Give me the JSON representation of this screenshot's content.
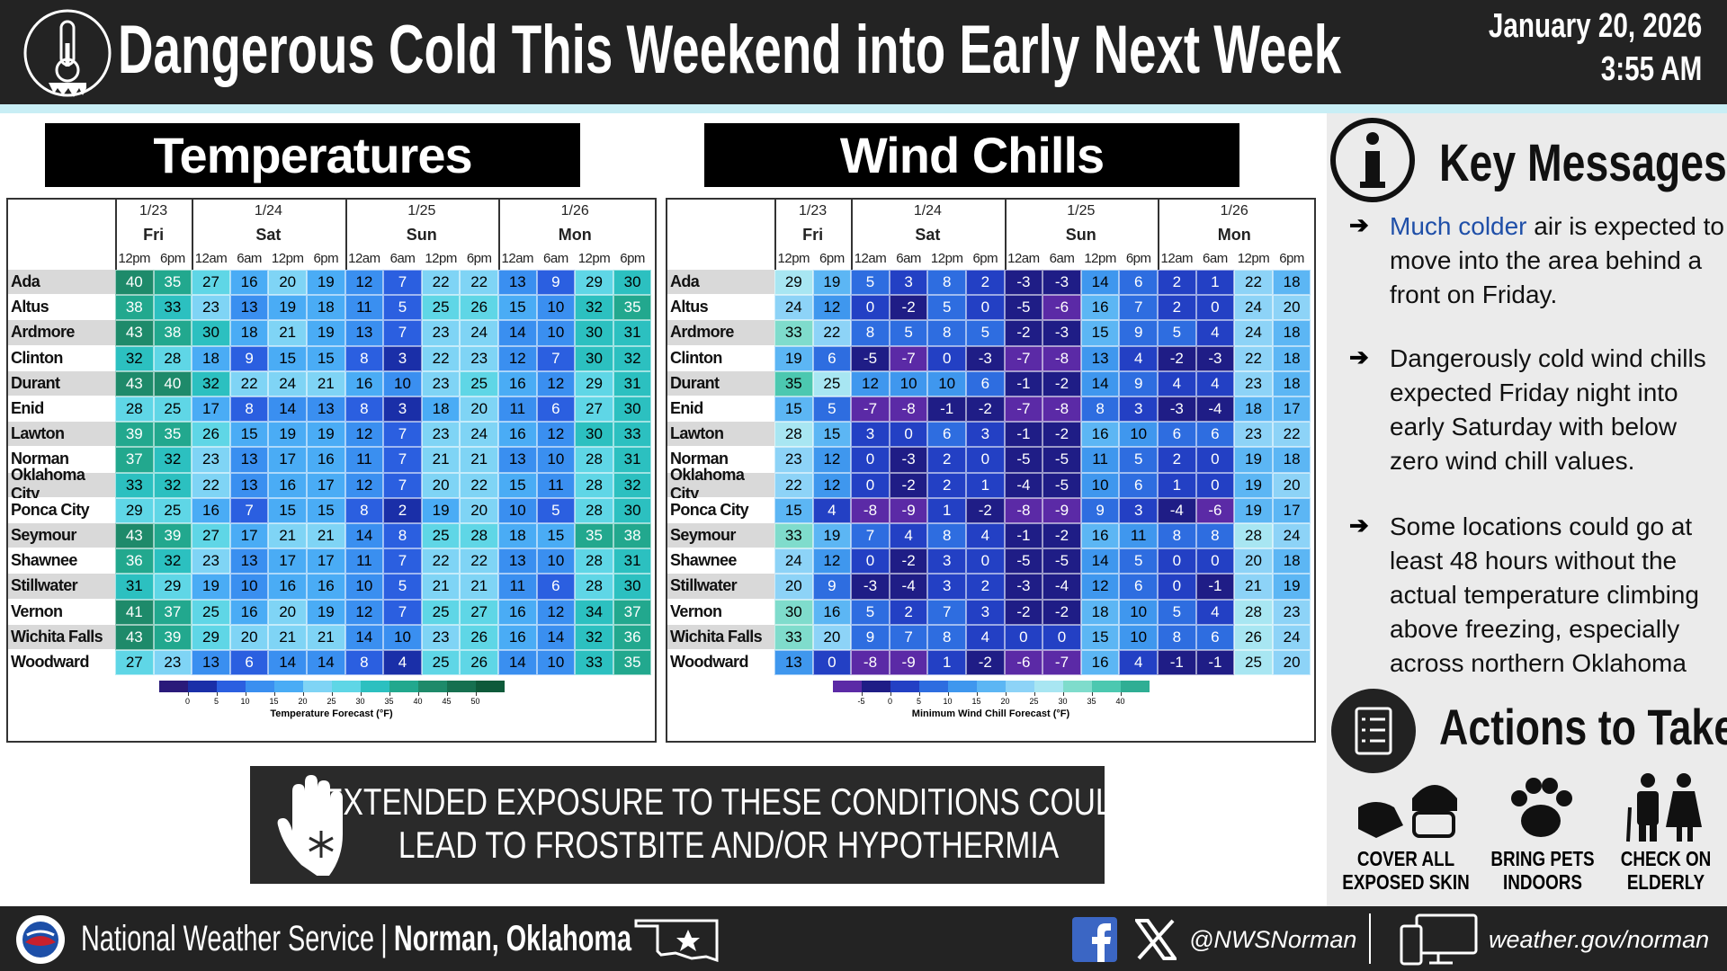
{
  "header": {
    "title": "Dangerous Cold This Weekend into Early Next Week",
    "date": "January 20, 2026",
    "time": "3:55 AM"
  },
  "temperatures": {
    "title": "Temperatures",
    "days": [
      {
        "date": "1/23",
        "day": "Fri",
        "times": [
          "12pm",
          "6pm"
        ]
      },
      {
        "date": "1/24",
        "day": "Sat",
        "times": [
          "12am",
          "6am",
          "12pm",
          "6pm"
        ]
      },
      {
        "date": "1/25",
        "day": "Sun",
        "times": [
          "12am",
          "6am",
          "12pm",
          "6pm"
        ]
      },
      {
        "date": "1/26",
        "day": "Mon",
        "times": [
          "12am",
          "6am",
          "12pm",
          "6pm"
        ]
      }
    ],
    "rows": [
      {
        "station": "Ada",
        "values": [
          40,
          35,
          27,
          16,
          20,
          19,
          12,
          7,
          22,
          22,
          13,
          9,
          29,
          30
        ]
      },
      {
        "station": "Altus",
        "values": [
          38,
          33,
          23,
          13,
          19,
          18,
          11,
          5,
          25,
          26,
          15,
          10,
          32,
          35
        ]
      },
      {
        "station": "Ardmore",
        "values": [
          43,
          38,
          30,
          18,
          21,
          19,
          13,
          7,
          23,
          24,
          14,
          10,
          30,
          31
        ]
      },
      {
        "station": "Clinton",
        "values": [
          32,
          28,
          18,
          9,
          15,
          15,
          8,
          3,
          22,
          23,
          12,
          7,
          30,
          32
        ]
      },
      {
        "station": "Durant",
        "values": [
          43,
          40,
          32,
          22,
          24,
          21,
          16,
          10,
          23,
          25,
          16,
          12,
          29,
          31
        ]
      },
      {
        "station": "Enid",
        "values": [
          28,
          25,
          17,
          8,
          14,
          13,
          8,
          3,
          18,
          20,
          11,
          6,
          27,
          30
        ]
      },
      {
        "station": "Lawton",
        "values": [
          39,
          35,
          26,
          15,
          19,
          19,
          12,
          7,
          23,
          24,
          16,
          12,
          30,
          33
        ]
      },
      {
        "station": "Norman",
        "values": [
          37,
          32,
          23,
          13,
          17,
          16,
          11,
          7,
          21,
          21,
          13,
          10,
          28,
          31
        ]
      },
      {
        "station": "Oklahoma City",
        "values": [
          33,
          32,
          22,
          13,
          16,
          17,
          12,
          7,
          20,
          22,
          15,
          11,
          28,
          32
        ]
      },
      {
        "station": "Ponca City",
        "values": [
          29,
          25,
          16,
          7,
          15,
          15,
          8,
          2,
          19,
          20,
          10,
          5,
          28,
          30
        ]
      },
      {
        "station": "Seymour",
        "values": [
          43,
          39,
          27,
          17,
          21,
          21,
          14,
          8,
          25,
          28,
          18,
          15,
          35,
          38
        ]
      },
      {
        "station": "Shawnee",
        "values": [
          36,
          32,
          23,
          13,
          17,
          17,
          11,
          7,
          22,
          22,
          13,
          10,
          28,
          31
        ]
      },
      {
        "station": "Stillwater",
        "values": [
          31,
          29,
          19,
          10,
          16,
          16,
          10,
          5,
          21,
          21,
          11,
          6,
          28,
          30
        ]
      },
      {
        "station": "Vernon",
        "values": [
          41,
          37,
          25,
          16,
          20,
          19,
          12,
          7,
          25,
          27,
          16,
          12,
          34,
          37
        ]
      },
      {
        "station": "Wichita Falls",
        "values": [
          43,
          39,
          29,
          20,
          21,
          21,
          14,
          10,
          23,
          26,
          16,
          14,
          32,
          36
        ]
      },
      {
        "station": "Woodward",
        "values": [
          27,
          23,
          13,
          6,
          14,
          14,
          8,
          4,
          25,
          26,
          14,
          10,
          33,
          35
        ]
      }
    ],
    "scale": {
      "ticks": [
        0,
        5,
        10,
        15,
        20,
        25,
        30,
        35,
        40,
        45,
        50
      ],
      "colors": [
        "#2a1a7a",
        "#1a2fa8",
        "#2b5fe0",
        "#3a8ff0",
        "#4aacf5",
        "#7fd4f5",
        "#5fd6e6",
        "#2cc0c0",
        "#22a88e",
        "#1e8a6a",
        "#167050",
        "#0e5a3a"
      ],
      "label": "Temperature Forecast (°F)"
    }
  },
  "wind_chills": {
    "title": "Wind Chills",
    "days": [
      {
        "date": "1/23",
        "day": "Fri",
        "times": [
          "12pm",
          "6pm"
        ]
      },
      {
        "date": "1/24",
        "day": "Sat",
        "times": [
          "12am",
          "6am",
          "12pm",
          "6pm"
        ]
      },
      {
        "date": "1/25",
        "day": "Sun",
        "times": [
          "12am",
          "6am",
          "12pm",
          "6pm"
        ]
      },
      {
        "date": "1/26",
        "day": "Mon",
        "times": [
          "12am",
          "6am",
          "12pm",
          "6pm"
        ]
      }
    ],
    "rows": [
      {
        "station": "Ada",
        "values": [
          29,
          19,
          5,
          3,
          8,
          2,
          -3,
          -3,
          14,
          6,
          2,
          1,
          22,
          18
        ]
      },
      {
        "station": "Altus",
        "values": [
          24,
          12,
          0,
          -2,
          5,
          0,
          -5,
          -6,
          16,
          7,
          2,
          0,
          24,
          20
        ]
      },
      {
        "station": "Ardmore",
        "values": [
          33,
          22,
          8,
          5,
          8,
          5,
          -2,
          -3,
          15,
          9,
          5,
          4,
          24,
          18
        ]
      },
      {
        "station": "Clinton",
        "values": [
          19,
          6,
          -5,
          -7,
          0,
          -3,
          -7,
          -8,
          13,
          4,
          -2,
          -3,
          22,
          18
        ]
      },
      {
        "station": "Durant",
        "values": [
          35,
          25,
          12,
          10,
          10,
          6,
          -1,
          -2,
          14,
          9,
          4,
          4,
          23,
          18
        ]
      },
      {
        "station": "Enid",
        "values": [
          15,
          5,
          -7,
          -8,
          -1,
          -2,
          -7,
          -8,
          8,
          3,
          -3,
          -4,
          18,
          17
        ]
      },
      {
        "station": "Lawton",
        "values": [
          28,
          15,
          3,
          0,
          6,
          3,
          -1,
          -2,
          16,
          10,
          6,
          6,
          23,
          22
        ]
      },
      {
        "station": "Norman",
        "values": [
          23,
          12,
          0,
          -3,
          2,
          0,
          -5,
          -5,
          11,
          5,
          2,
          0,
          19,
          18
        ]
      },
      {
        "station": "Oklahoma City",
        "values": [
          22,
          12,
          0,
          -2,
          2,
          1,
          -4,
          -5,
          10,
          6,
          1,
          0,
          19,
          20
        ]
      },
      {
        "station": "Ponca City",
        "values": [
          15,
          4,
          -8,
          -9,
          1,
          -2,
          -8,
          -9,
          9,
          3,
          -4,
          -6,
          19,
          17
        ]
      },
      {
        "station": "Seymour",
        "values": [
          33,
          19,
          7,
          4,
          8,
          4,
          -1,
          -2,
          16,
          11,
          8,
          8,
          28,
          24
        ]
      },
      {
        "station": "Shawnee",
        "values": [
          24,
          12,
          0,
          -2,
          3,
          0,
          -5,
          -5,
          14,
          5,
          0,
          0,
          20,
          18
        ]
      },
      {
        "station": "Stillwater",
        "values": [
          20,
          9,
          -3,
          -4,
          3,
          2,
          -3,
          -4,
          12,
          6,
          0,
          -1,
          21,
          19
        ]
      },
      {
        "station": "Vernon",
        "values": [
          30,
          16,
          5,
          2,
          7,
          3,
          -2,
          -2,
          18,
          10,
          5,
          4,
          28,
          23
        ]
      },
      {
        "station": "Wichita Falls",
        "values": [
          33,
          20,
          9,
          7,
          8,
          4,
          0,
          0,
          15,
          10,
          8,
          6,
          26,
          24
        ]
      },
      {
        "station": "Woodward",
        "values": [
          13,
          0,
          -8,
          -9,
          1,
          -2,
          -6,
          -7,
          16,
          4,
          -1,
          -1,
          25,
          20
        ]
      }
    ],
    "scale": {
      "ticks": [
        -5,
        0,
        5,
        10,
        15,
        20,
        25,
        30,
        35,
        40
      ],
      "colors": [
        "#5b2aa6",
        "#1f1d86",
        "#2340c4",
        "#2e6de0",
        "#3f97ee",
        "#5cb6f4",
        "#8dd3f7",
        "#a8e6f2",
        "#7fdccc",
        "#4cc8b0",
        "#2fae94"
      ],
      "label": "Minimum Wind Chill Forecast (°F)"
    }
  },
  "banner": {
    "lines": [
      "EXTENDED EXPOSURE TO THESE CONDITIONS COULD",
      "LEAD TO FROSTBITE AND/OR HYPOTHERMIA"
    ]
  },
  "key_messages": {
    "title": "Key Messages",
    "items": [
      {
        "highlight": "Much colder",
        "text": "air is expected to move into the area behind a front on Friday."
      },
      {
        "text": "Dangerously cold wind chills expected Friday night into early Saturday with below zero wind chill values."
      },
      {
        "text": "Some locations could go at least 48 hours without the actual temperature climbing above freezing, especially across northern Oklahoma"
      }
    ]
  },
  "actions": {
    "title": "Actions to Take",
    "items": [
      {
        "lines": [
          "COVER ALL",
          "EXPOSED SKIN"
        ]
      },
      {
        "lines": [
          "BRING PETS",
          "INDOORS"
        ]
      },
      {
        "lines": [
          "CHECK ON",
          "ELDERLY"
        ]
      }
    ]
  },
  "footer": {
    "agency": "National Weather Service",
    "office": "Norman, Oklahoma",
    "handle": "@NWSNorman",
    "website": "weather.gov/norman"
  }
}
